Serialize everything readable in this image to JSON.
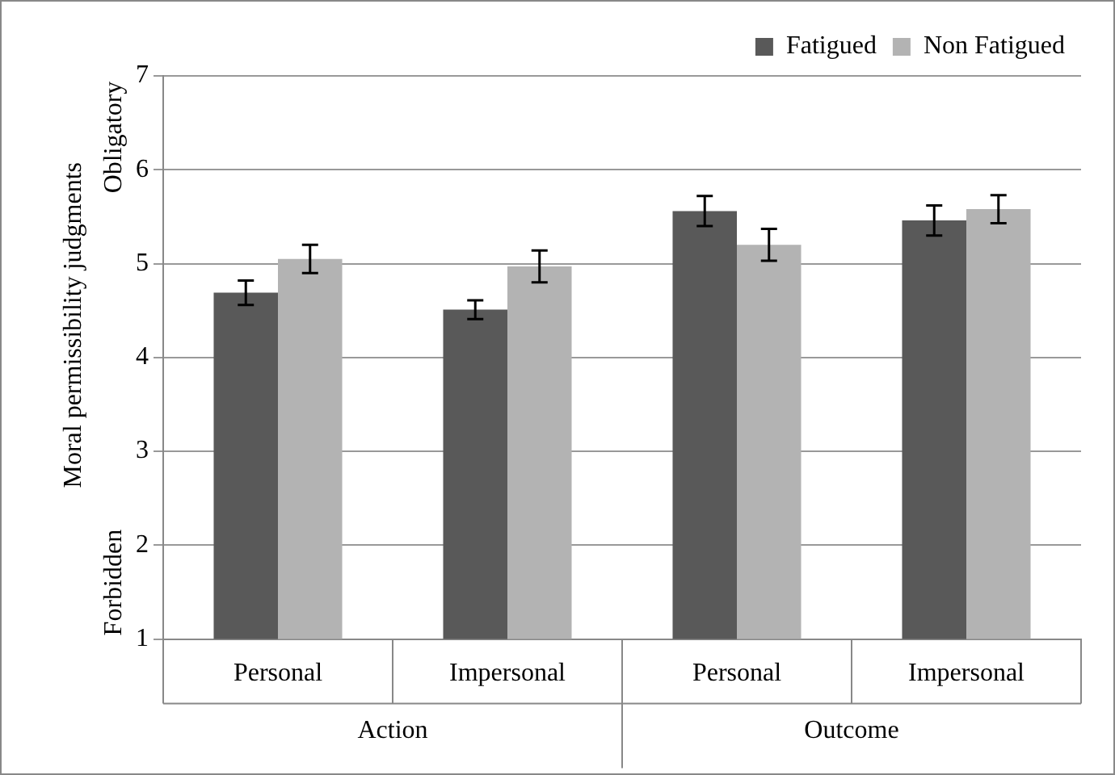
{
  "chart_data": {
    "type": "bar",
    "ylabel": "Moral permissibility judgments",
    "categories": [
      "Personal",
      "Impersonal",
      "Personal",
      "Impersonal"
    ],
    "series": [
      {
        "name": "Fatigued",
        "color": "#595959",
        "values": [
          4.69,
          4.51,
          5.56,
          5.46
        ],
        "errors": [
          0.13,
          0.1,
          0.16,
          0.16
        ]
      },
      {
        "name": "Non Fatigued",
        "color": "#b3b3b3",
        "values": [
          5.05,
          4.97,
          5.2,
          5.58
        ],
        "errors": [
          0.15,
          0.17,
          0.17,
          0.15
        ]
      }
    ],
    "ylim": [
      1,
      7
    ],
    "yticks": [
      1,
      2,
      3,
      4,
      5,
      6,
      7
    ],
    "grid": "y",
    "legend": "top right",
    "annotations": [
      "Action",
      "Outcome",
      "Forbidden",
      "Obligatory"
    ]
  }
}
